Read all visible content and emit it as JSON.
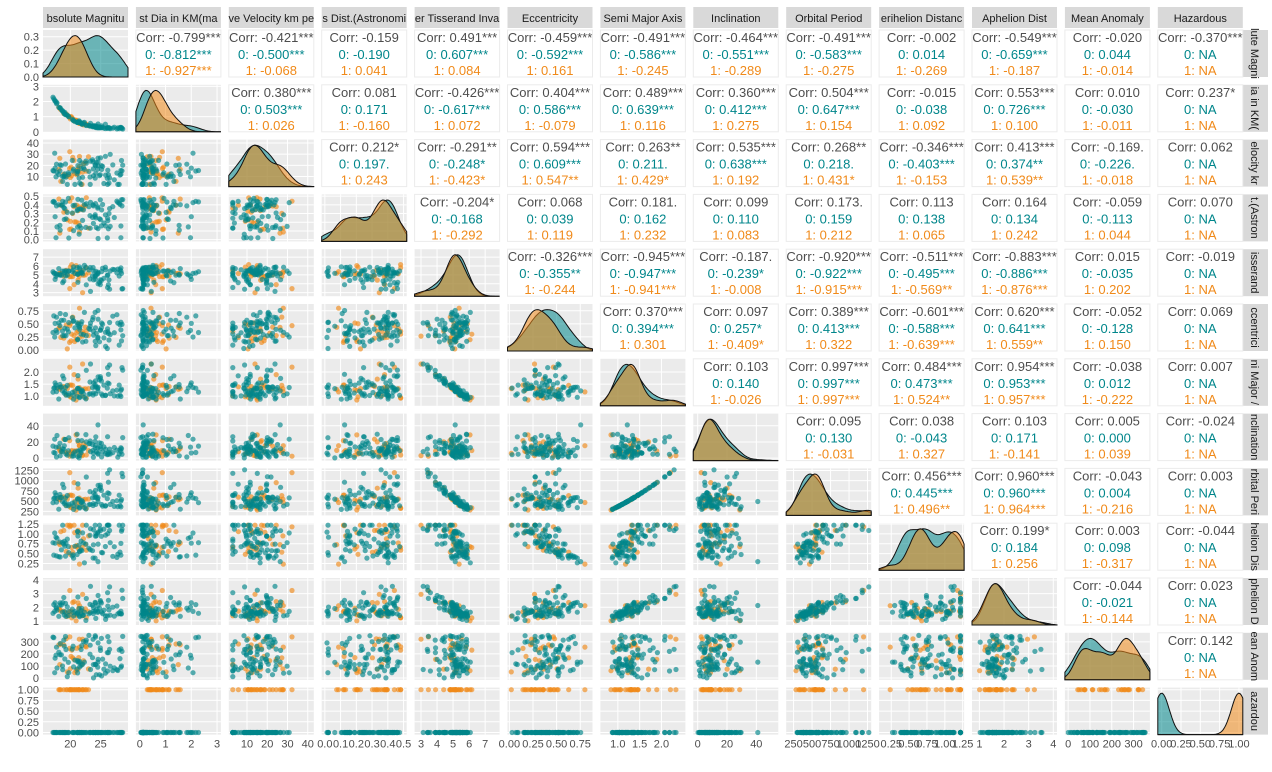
{
  "chart_data": {
    "type": "scatter",
    "description": "ggpairs scatterplot matrix of asteroid orbital variables, colored by Hazardous class",
    "variables": [
      {
        "label": "Absolute Magnitude",
        "strip": "bsolute Magnitu",
        "range": [
          15.5,
          29.5
        ],
        "ticks": [
          {
            "v": 20,
            "t": "20"
          },
          {
            "v": 25,
            "t": "25"
          }
        ]
      },
      {
        "label": "Est Dia in KM(max)",
        "strip": "st Dia in KM(ma",
        "range": [
          -0.15,
          3.15
        ],
        "ticks": [
          {
            "v": 0,
            "t": "0"
          },
          {
            "v": 1,
            "t": "1"
          },
          {
            "v": 2,
            "t": "2"
          },
          {
            "v": 3,
            "t": "3"
          }
        ]
      },
      {
        "label": "Relative Velocity km per sec",
        "strip": "ve Velocity km pe",
        "range": [
          1,
          43
        ],
        "ticks": [
          {
            "v": 10,
            "t": "10"
          },
          {
            "v": 20,
            "t": "20"
          },
          {
            "v": 30,
            "t": "30"
          },
          {
            "v": 40,
            "t": "40"
          }
        ]
      },
      {
        "label": "Miss Dist.(Astronomical)",
        "strip": "s Dist.(Astronomi",
        "range": [
          -0.02,
          0.52
        ],
        "ticks": [
          {
            "v": 0.0,
            "t": "0.0"
          },
          {
            "v": 0.1,
            "t": "0.1"
          },
          {
            "v": 0.2,
            "t": "0.2"
          },
          {
            "v": 0.3,
            "t": "0.3"
          },
          {
            "v": 0.4,
            "t": "0.4"
          },
          {
            "v": 0.5,
            "t": "0.5"
          }
        ]
      },
      {
        "label": "Jupiter Tisserand Invariant",
        "strip": "er Tisserand Inva",
        "range": [
          2.6,
          7.9
        ],
        "ticks": [
          {
            "v": 3,
            "t": "3"
          },
          {
            "v": 4,
            "t": "4"
          },
          {
            "v": 5,
            "t": "5"
          },
          {
            "v": 6,
            "t": "6"
          },
          {
            "v": 7,
            "t": "7"
          }
        ]
      },
      {
        "label": "Eccentricity",
        "strip": "Eccentricity",
        "range": [
          -0.02,
          0.88
        ],
        "ticks": [
          {
            "v": 0.0,
            "t": "0.00"
          },
          {
            "v": 0.25,
            "t": "0.25"
          },
          {
            "v": 0.5,
            "t": "0.50"
          },
          {
            "v": 0.75,
            "t": "0.75"
          }
        ]
      },
      {
        "label": "Semi Major Axis",
        "strip": "Semi Major Axis",
        "range": [
          0.6,
          2.55
        ],
        "ticks": [
          {
            "v": 1.0,
            "t": "1.0"
          },
          {
            "v": 1.5,
            "t": "1.5"
          },
          {
            "v": 2.0,
            "t": "2.0"
          }
        ]
      },
      {
        "label": "Inclination",
        "strip": "Inclination",
        "range": [
          -3,
          55
        ],
        "ticks": [
          {
            "v": 0,
            "t": "0"
          },
          {
            "v": 20,
            "t": "20"
          },
          {
            "v": 40,
            "t": "40"
          }
        ]
      },
      {
        "label": "Orbital Period",
        "strip": "Orbital Period",
        "range": [
          150,
          1300
        ],
        "ticks": [
          {
            "v": 250,
            "t": "250"
          },
          {
            "v": 500,
            "t": "500"
          },
          {
            "v": 750,
            "t": "750"
          },
          {
            "v": 1000,
            "t": "1000"
          },
          {
            "v": 1250,
            "t": "1250"
          }
        ]
      },
      {
        "label": "Perihelion Distance",
        "strip": "erihelion Distanc",
        "range": [
          0.08,
          1.27
        ],
        "ticks": [
          {
            "v": 0.25,
            "t": "0.25"
          },
          {
            "v": 0.5,
            "t": "0.50"
          },
          {
            "v": 0.75,
            "t": "0.75"
          },
          {
            "v": 1.0,
            "t": "1.00"
          },
          {
            "v": 1.25,
            "t": "1.25"
          }
        ]
      },
      {
        "label": "Aphelion Dist",
        "strip": "Aphelion Dist",
        "range": [
          0.7,
          4.15
        ],
        "ticks": [
          {
            "v": 1,
            "t": "1"
          },
          {
            "v": 2,
            "t": "2"
          },
          {
            "v": 3,
            "t": "3"
          },
          {
            "v": 4,
            "t": "4"
          }
        ]
      },
      {
        "label": "Mean Anomaly",
        "strip": "Mean Anomaly",
        "range": [
          -15,
          375
        ],
        "ticks": [
          {
            "v": 0,
            "t": "0"
          },
          {
            "v": 100,
            "t": "100"
          },
          {
            "v": 200,
            "t": "200"
          },
          {
            "v": 300,
            "t": "300"
          }
        ]
      },
      {
        "label": "Hazardous",
        "strip": "Hazardous",
        "range": [
          -0.05,
          1.05
        ],
        "ticks": [
          {
            "v": 0.0,
            "t": "0.00"
          },
          {
            "v": 0.25,
            "t": "0.25"
          },
          {
            "v": 0.5,
            "t": "0.50"
          },
          {
            "v": 0.75,
            "t": "0.75"
          },
          {
            "v": 1.0,
            "t": "1.00"
          }
        ]
      }
    ],
    "right_strips": [
      "lute Magni",
      "ia in KM(",
      "elocity kr",
      "t.(Astron",
      "isserand",
      "ccentrici",
      "ni Major /",
      "nclination",
      "rbital Peri",
      "helion Dis",
      "phelion D",
      "ean Anom",
      "azardou"
    ],
    "y_ticks": [
      [
        {
          "v": 0.0,
          "t": "0.0"
        },
        {
          "v": 0.1,
          "t": "0.1"
        },
        {
          "v": 0.2,
          "t": "0.2"
        },
        {
          "v": 0.3,
          "t": "0.3"
        }
      ],
      [
        {
          "v": 0,
          "t": "0"
        },
        {
          "v": 1,
          "t": "1"
        },
        {
          "v": 2,
          "t": "2"
        },
        {
          "v": 3,
          "t": "3"
        }
      ],
      [
        {
          "v": 10,
          "t": "10"
        },
        {
          "v": 20,
          "t": "20"
        },
        {
          "v": 30,
          "t": "30"
        },
        {
          "v": 40,
          "t": "40"
        }
      ],
      [
        {
          "v": 0.0,
          "t": "0.0"
        },
        {
          "v": 0.1,
          "t": "0.1"
        },
        {
          "v": 0.2,
          "t": "0.2"
        },
        {
          "v": 0.3,
          "t": "0.3"
        },
        {
          "v": 0.4,
          "t": "0.4"
        },
        {
          "v": 0.5,
          "t": "0.5"
        }
      ],
      [
        {
          "v": 3,
          "t": "3"
        },
        {
          "v": 4,
          "t": "4"
        },
        {
          "v": 5,
          "t": "5"
        },
        {
          "v": 6,
          "t": "6"
        },
        {
          "v": 7,
          "t": "7"
        }
      ],
      [
        {
          "v": 0.0,
          "t": "0.00"
        },
        {
          "v": 0.25,
          "t": "0.25"
        },
        {
          "v": 0.5,
          "t": "0.50"
        },
        {
          "v": 0.75,
          "t": "0.75"
        }
      ],
      [
        {
          "v": 1.0,
          "t": "1.0"
        },
        {
          "v": 1.5,
          "t": "1.5"
        },
        {
          "v": 2.0,
          "t": "2.0"
        }
      ],
      [
        {
          "v": 0,
          "t": "0"
        },
        {
          "v": 20,
          "t": "20"
        },
        {
          "v": 40,
          "t": "40"
        }
      ],
      [
        {
          "v": 250,
          "t": "250"
        },
        {
          "v": 500,
          "t": "500"
        },
        {
          "v": 750,
          "t": "750"
        },
        {
          "v": 1000,
          "t": "1000"
        },
        {
          "v": 1250,
          "t": "1250"
        }
      ],
      [
        {
          "v": 0.25,
          "t": "0.25"
        },
        {
          "v": 0.5,
          "t": "0.50"
        },
        {
          "v": 0.75,
          "t": "0.75"
        },
        {
          "v": 1.0,
          "t": "1.00"
        },
        {
          "v": 1.25,
          "t": "1.25"
        }
      ],
      [
        {
          "v": 1,
          "t": "1"
        },
        {
          "v": 2,
          "t": "2"
        },
        {
          "v": 3,
          "t": "3"
        },
        {
          "v": 4,
          "t": "4"
        }
      ],
      [
        {
          "v": 0,
          "t": "0"
        },
        {
          "v": 100,
          "t": "100"
        },
        {
          "v": 200,
          "t": "200"
        },
        {
          "v": 300,
          "t": "300"
        }
      ],
      [
        {
          "v": 0.0,
          "t": "0.00"
        },
        {
          "v": 0.25,
          "t": "0.25"
        },
        {
          "v": 0.5,
          "t": "0.50"
        },
        {
          "v": 0.75,
          "t": "0.75"
        },
        {
          "v": 1.0,
          "t": "1.00"
        }
      ]
    ],
    "groups": [
      {
        "name": "0",
        "color": "#00868b"
      },
      {
        "name": "1",
        "color": "#f08a1a"
      }
    ],
    "correlations": [
      [
        0,
        1,
        "-0.799***",
        "-0.812***",
        "-0.927***"
      ],
      [
        0,
        2,
        "-0.421***",
        "-0.500***",
        "-0.068"
      ],
      [
        0,
        3,
        "-0.159",
        "-0.190",
        "0.041"
      ],
      [
        0,
        4,
        "0.491***",
        "0.607***",
        "0.084"
      ],
      [
        0,
        5,
        "-0.459***",
        "-0.592***",
        "0.161"
      ],
      [
        0,
        6,
        "-0.491***",
        "-0.586***",
        "-0.245"
      ],
      [
        0,
        7,
        "-0.464***",
        "-0.551***",
        "-0.289"
      ],
      [
        0,
        8,
        "-0.491***",
        "-0.583***",
        "-0.275"
      ],
      [
        0,
        9,
        "-0.002",
        "0.014",
        "-0.269"
      ],
      [
        0,
        10,
        "-0.549***",
        "-0.659***",
        "-0.187"
      ],
      [
        0,
        11,
        "-0.020",
        "0.044",
        "-0.014"
      ],
      [
        0,
        12,
        "-0.370***",
        "NA",
        "NA"
      ],
      [
        1,
        2,
        "0.380***",
        "0.503***",
        "0.026"
      ],
      [
        1,
        3,
        "0.081",
        "0.171",
        "-0.160"
      ],
      [
        1,
        4,
        "-0.426***",
        "-0.617***",
        "0.072"
      ],
      [
        1,
        5,
        "0.404***",
        "0.586***",
        "-0.079"
      ],
      [
        1,
        6,
        "0.489***",
        "0.639***",
        "0.116"
      ],
      [
        1,
        7,
        "0.360***",
        "0.412***",
        "0.275"
      ],
      [
        1,
        8,
        "0.504***",
        "0.647***",
        "0.154"
      ],
      [
        1,
        9,
        "-0.015",
        "-0.038",
        "0.092"
      ],
      [
        1,
        10,
        "0.553***",
        "0.726***",
        "0.100"
      ],
      [
        1,
        11,
        "0.010",
        "-0.030",
        "-0.011"
      ],
      [
        1,
        12,
        "0.237*",
        "NA",
        "NA"
      ],
      [
        2,
        3,
        "0.212*",
        "0.197.",
        "0.243"
      ],
      [
        2,
        4,
        "-0.291**",
        "-0.248*",
        "-0.423*"
      ],
      [
        2,
        5,
        "0.594***",
        "0.609***",
        "0.547**"
      ],
      [
        2,
        6,
        "0.263**",
        "0.211.",
        "0.429*"
      ],
      [
        2,
        7,
        "0.535***",
        "0.638***",
        "0.192"
      ],
      [
        2,
        8,
        "0.268**",
        "0.218.",
        "0.431*"
      ],
      [
        2,
        9,
        "-0.346***",
        "-0.403***",
        "-0.153"
      ],
      [
        2,
        10,
        "0.413***",
        "0.374**",
        "0.539**"
      ],
      [
        2,
        11,
        "-0.169.",
        "-0.226.",
        "-0.018"
      ],
      [
        2,
        12,
        "0.062",
        "NA",
        "NA"
      ],
      [
        3,
        4,
        "-0.204*",
        "-0.168",
        "-0.292"
      ],
      [
        3,
        5,
        "0.068",
        "0.039",
        "0.119"
      ],
      [
        3,
        6,
        "0.181.",
        "0.162",
        "0.232"
      ],
      [
        3,
        7,
        "0.099",
        "0.110",
        "0.083"
      ],
      [
        3,
        8,
        "0.173.",
        "0.159",
        "0.212"
      ],
      [
        3,
        9,
        "0.113",
        "0.138",
        "0.065"
      ],
      [
        3,
        10,
        "0.164",
        "0.134",
        "0.242"
      ],
      [
        3,
        11,
        "-0.059",
        "-0.113",
        "0.044"
      ],
      [
        3,
        12,
        "0.070",
        "NA",
        "NA"
      ],
      [
        4,
        5,
        "-0.326***",
        "-0.355**",
        "-0.244"
      ],
      [
        4,
        6,
        "-0.945***",
        "-0.947***",
        "-0.941***"
      ],
      [
        4,
        7,
        "-0.187.",
        "-0.239*",
        "-0.008"
      ],
      [
        4,
        8,
        "-0.920***",
        "-0.922***",
        "-0.915***"
      ],
      [
        4,
        9,
        "-0.511***",
        "-0.495***",
        "-0.569**"
      ],
      [
        4,
        10,
        "-0.883***",
        "-0.886***",
        "-0.876***"
      ],
      [
        4,
        11,
        "0.015",
        "-0.035",
        "0.202"
      ],
      [
        4,
        12,
        "-0.019",
        "NA",
        "NA"
      ],
      [
        5,
        6,
        "0.370***",
        "0.394***",
        "0.301"
      ],
      [
        5,
        7,
        "0.097",
        "0.257*",
        "-0.409*"
      ],
      [
        5,
        8,
        "0.389***",
        "0.413***",
        "0.322"
      ],
      [
        5,
        9,
        "-0.601***",
        "-0.588***",
        "-0.639***"
      ],
      [
        5,
        10,
        "0.620***",
        "0.641***",
        "0.559**"
      ],
      [
        5,
        11,
        "-0.052",
        "-0.128",
        "0.150"
      ],
      [
        5,
        12,
        "0.069",
        "NA",
        "NA"
      ],
      [
        6,
        7,
        "0.103",
        "0.140",
        "-0.026"
      ],
      [
        6,
        8,
        "0.997***",
        "0.997***",
        "0.997***"
      ],
      [
        6,
        9,
        "0.484***",
        "0.473***",
        "0.524**"
      ],
      [
        6,
        10,
        "0.954***",
        "0.953***",
        "0.957***"
      ],
      [
        6,
        11,
        "-0.038",
        "0.012",
        "-0.222"
      ],
      [
        6,
        12,
        "0.007",
        "NA",
        "NA"
      ],
      [
        7,
        8,
        "0.095",
        "0.130",
        "-0.031"
      ],
      [
        7,
        9,
        "0.038",
        "-0.043",
        "0.327"
      ],
      [
        7,
        10,
        "0.103",
        "0.171",
        "-0.141"
      ],
      [
        7,
        11,
        "0.005",
        "0.000",
        "0.039"
      ],
      [
        7,
        12,
        "-0.024",
        "NA",
        "NA"
      ],
      [
        8,
        9,
        "0.456***",
        "0.445***",
        "0.496**"
      ],
      [
        8,
        10,
        "0.960***",
        "0.960***",
        "0.964***"
      ],
      [
        8,
        11,
        "-0.043",
        "0.004",
        "-0.216"
      ],
      [
        8,
        12,
        "0.003",
        "NA",
        "NA"
      ],
      [
        9,
        10,
        "0.199*",
        "0.184",
        "0.256"
      ],
      [
        9,
        11,
        "0.003",
        "0.098",
        "-0.317"
      ],
      [
        9,
        12,
        "-0.044",
        "NA",
        "NA"
      ],
      [
        10,
        11,
        "-0.044",
        "-0.021",
        "-0.144"
      ],
      [
        10,
        12,
        "0.023",
        "NA",
        "NA"
      ],
      [
        11,
        12,
        "0.142",
        "NA",
        "NA"
      ]
    ],
    "density_peak_scale": [
      0.33,
      2.9,
      1,
      1,
      1,
      1,
      1,
      1,
      1,
      1,
      1,
      1,
      1
    ],
    "y_axis_range_row0": [
      0,
      0.35
    ],
    "y_axis_range_row1": [
      0,
      3.1
    ]
  }
}
